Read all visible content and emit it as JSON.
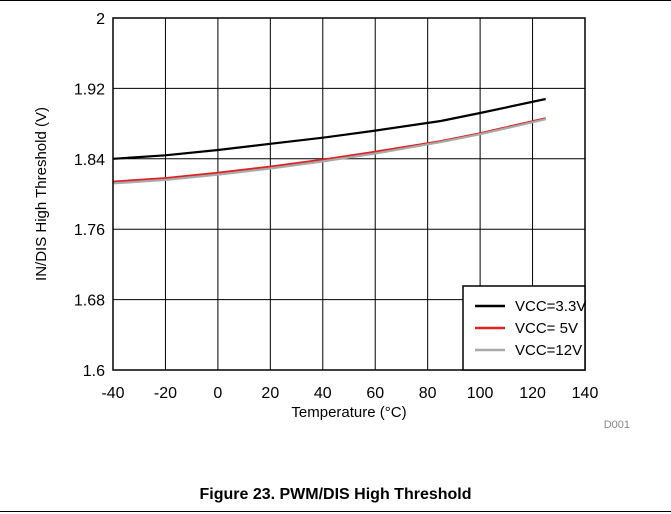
{
  "chart_data": {
    "type": "line",
    "title": "",
    "xlabel": "Temperature (°C)",
    "ylabel": "IN/DIS High Threshold (V)",
    "xlim": [
      -40,
      140
    ],
    "ylim": [
      1.6,
      2
    ],
    "xticks": [
      -40,
      -20,
      0,
      20,
      40,
      60,
      80,
      100,
      120,
      140
    ],
    "xtick_labels": [
      "-40",
      "-20",
      "0",
      "20",
      "40",
      "60",
      "80",
      "100",
      "120",
      "140"
    ],
    "yticks": [
      1.6,
      1.68,
      1.76,
      1.84,
      1.92,
      2
    ],
    "ytick_labels": [
      "1.6",
      "1.68",
      "1.76",
      "1.84",
      "1.92",
      "2"
    ],
    "grid": true,
    "legend_position": "bottom-right",
    "series": [
      {
        "name": "VCC=3.3V",
        "color": "#000000",
        "x": [
          -40,
          -20,
          0,
          20,
          40,
          50,
          60,
          85,
          100,
          125
        ],
        "y": [
          1.84,
          1.844,
          1.85,
          1.857,
          1.864,
          1.868,
          1.872,
          1.883,
          1.892,
          1.908
        ]
      },
      {
        "name": "VCC= 5V",
        "color": "#e02020",
        "x": [
          -40,
          -20,
          0,
          20,
          40,
          60,
          85,
          100,
          125
        ],
        "y": [
          1.814,
          1.818,
          1.824,
          1.831,
          1.839,
          1.848,
          1.86,
          1.869,
          1.886
        ]
      },
      {
        "name": "VCC=12V",
        "color": "#a8a8a8",
        "x": [
          -40,
          -20,
          0,
          20,
          40,
          60,
          85,
          100,
          125
        ],
        "y": [
          1.812,
          1.816,
          1.822,
          1.829,
          1.837,
          1.846,
          1.859,
          1.868,
          1.885
        ]
      }
    ]
  },
  "figure_id": "D001",
  "caption": "Figure 23. PWM/DIS High Threshold"
}
